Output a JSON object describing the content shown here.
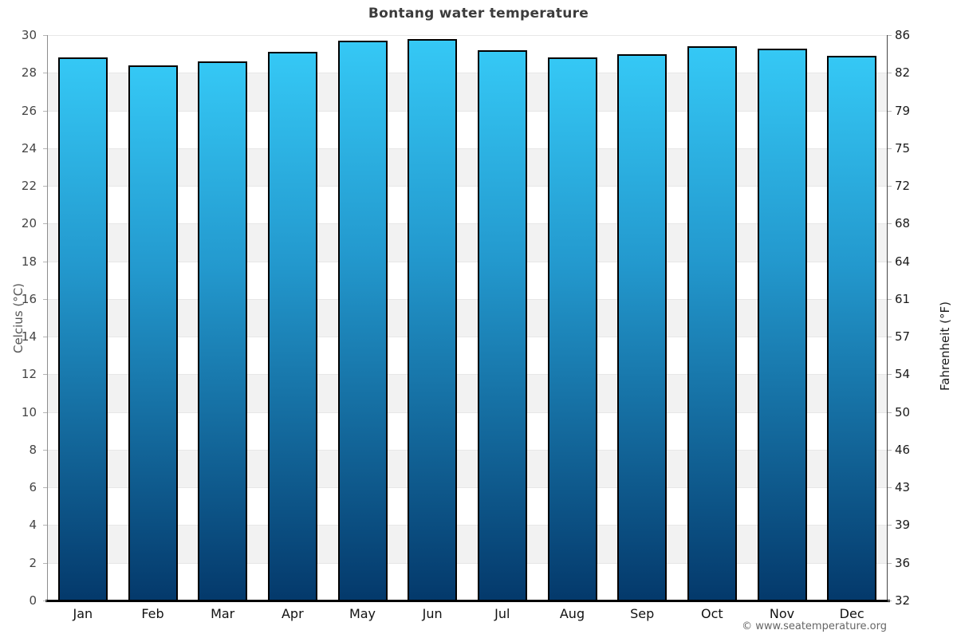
{
  "title": "Bontang water temperature",
  "footer": {
    "copyright": "© www.seatemperature.org"
  },
  "chart_data": {
    "type": "bar",
    "title": "Bontang water temperature",
    "categories": [
      "Jan",
      "Feb",
      "Mar",
      "Apr",
      "May",
      "Jun",
      "Jul",
      "Aug",
      "Sep",
      "Oct",
      "Nov",
      "Dec"
    ],
    "series": [
      {
        "name": "Water temperature (°C)",
        "values": [
          28.8,
          28.4,
          28.6,
          29.1,
          29.7,
          29.8,
          29.2,
          28.8,
          29.0,
          29.4,
          29.3,
          28.9
        ]
      }
    ],
    "ylabel_left": "Celcius (°C)",
    "ylabel_right": "Fahrenheit (°F)",
    "ylim_celsius": [
      0,
      30
    ],
    "yticks_celsius": [
      30,
      28,
      26,
      24,
      22,
      20,
      18,
      16,
      14,
      12,
      10,
      8,
      6,
      4,
      2,
      0
    ],
    "yticks_fahrenheit": [
      86,
      82,
      79,
      75,
      72,
      68,
      64,
      61,
      57,
      54,
      50,
      46,
      43,
      39,
      36,
      32
    ],
    "grid": "alternating horizontal bands every 2°C",
    "legend": "none",
    "colors": {
      "bar_gradient_top": "#35c8f5",
      "bar_gradient_mid": "#2399ce",
      "bar_gradient_bottom": "#04396b",
      "bar_border": "#000000",
      "band_white": "#ffffff",
      "band_gray": "#f2f2f2",
      "gridline": "#e7e7e7",
      "axis_bottom": "#000000",
      "title_color": "#3c3c3c"
    }
  }
}
